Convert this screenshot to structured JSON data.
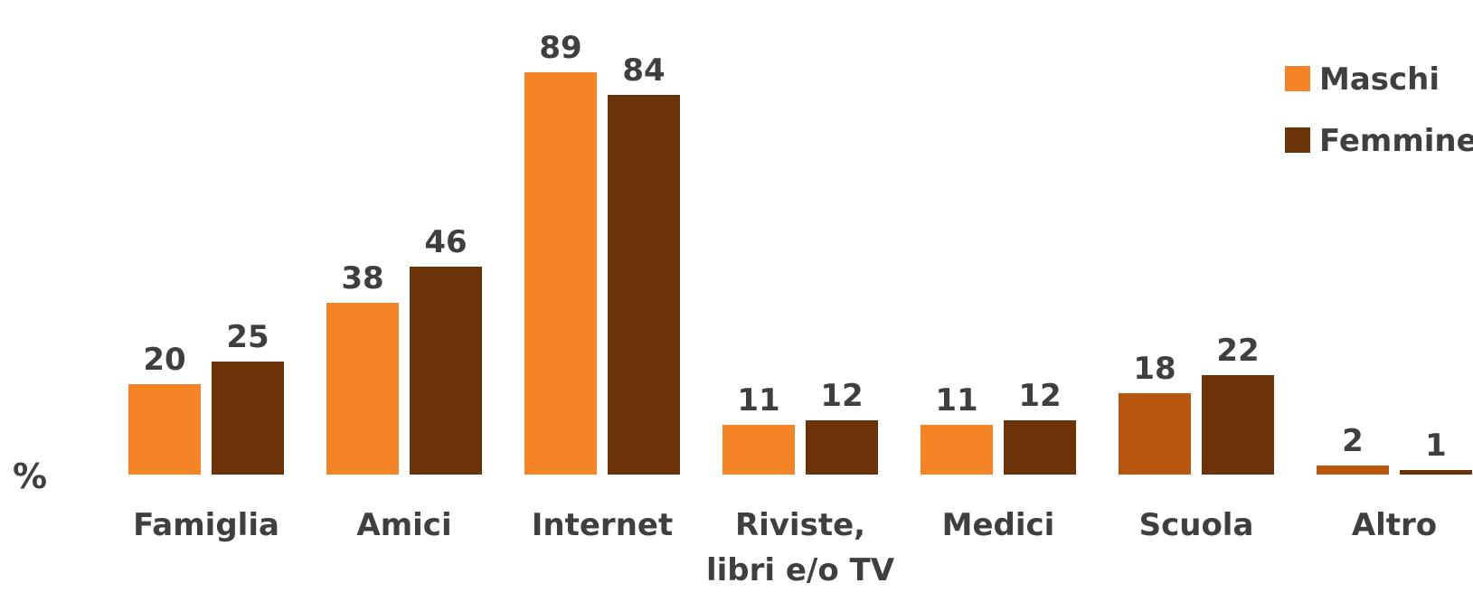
{
  "chart_data": {
    "type": "bar",
    "ylabel": "%",
    "categories": [
      "Famiglia",
      "Amici",
      "Internet",
      "Riviste,\nlibri e/o TV",
      "Medici",
      "Scuola",
      "Altro"
    ],
    "series": [
      {
        "name": "Maschi",
        "values": [
          20,
          38,
          89,
          11,
          11,
          18,
          2
        ],
        "color": "#F58426"
      },
      {
        "name": "Femmine",
        "values": [
          25,
          46,
          84,
          12,
          12,
          22,
          1
        ],
        "color": "#6B3307"
      }
    ],
    "bar_color_overrides": {
      "Maschi": {
        "Scuola": "#B8560E",
        "Altro": "#B8560E"
      }
    },
    "ylim": [
      0,
      100
    ],
    "legend": "top-right",
    "grid": false
  }
}
